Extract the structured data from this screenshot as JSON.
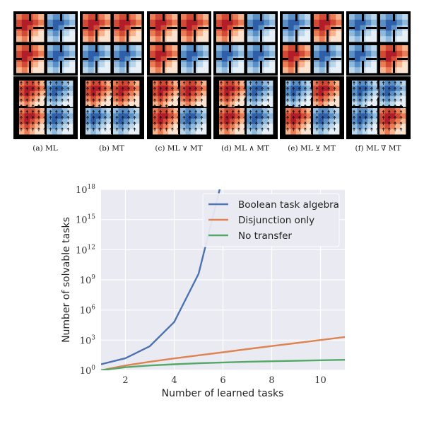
{
  "panels": [
    {
      "caption": "(a) M_L",
      "caption_text": "(a) ML",
      "top": [
        "warm",
        "cool",
        "warm",
        "cool"
      ],
      "bottom": "warm-left"
    },
    {
      "caption": "(b) M_T",
      "caption_text": "(b) MT",
      "top": [
        "warm",
        "warm",
        "cool",
        "cool"
      ],
      "bottom": "warm-top"
    },
    {
      "caption": "(c) M_L ∨ M_T",
      "caption_text": "(c) ML ∨ MT",
      "top": [
        "warm",
        "warm",
        "warm",
        "cool"
      ],
      "bottom": "warm-most"
    },
    {
      "caption": "(d) M_L ∧ M_T",
      "caption_text": "(d) ML ∧ MT",
      "top": [
        "warm",
        "cool",
        "cool",
        "cool"
      ],
      "bottom": "warm-topleft"
    },
    {
      "caption": "(e) M_L ⊻ M_T",
      "caption_text": "(e) ML ⊻ MT",
      "top": [
        "cool",
        "warm",
        "warm",
        "cool"
      ],
      "bottom": "warm-diag"
    },
    {
      "caption": "(f) M_L ∇̄ M_T",
      "caption_text": "(f) ML ∇̄ MT",
      "top": [
        "cool",
        "cool",
        "cool",
        "warm"
      ],
      "bottom": "warm-bottomright"
    }
  ],
  "chart_data": {
    "type": "line",
    "xlabel": "Number of learned tasks",
    "ylabel": "Number of solvable tasks",
    "xlim": [
      1,
      11
    ],
    "ylim_log10": [
      0,
      18
    ],
    "yscale": "log",
    "x_ticks": [
      "2",
      "4",
      "6",
      "8",
      "10"
    ],
    "y_ticks": [
      "10^0",
      "10^3",
      "10^6",
      "10^9",
      "10^12",
      "10^15",
      "10^18"
    ],
    "grid": true,
    "legend_position": "top-right",
    "series": [
      {
        "name": "Boolean task algebra",
        "color": "#4c72b0",
        "x": [
          1,
          2,
          3,
          4,
          5,
          6
        ],
        "y_log10": [
          0.6,
          1.2,
          2.4,
          4.8,
          9.6,
          19.3
        ]
      },
      {
        "name": "Disjunction only",
        "color": "#dd8452",
        "x": [
          1,
          2,
          3,
          4,
          5,
          6,
          7,
          8,
          9,
          10,
          11
        ],
        "y_log10": [
          0.0,
          0.48,
          0.85,
          1.18,
          1.49,
          1.79,
          2.11,
          2.41,
          2.71,
          3.01,
          3.31
        ]
      },
      {
        "name": "No transfer",
        "color": "#55a868",
        "x": [
          1,
          2,
          3,
          4,
          5,
          6,
          7,
          8,
          9,
          10,
          11
        ],
        "y_log10": [
          0.0,
          0.3,
          0.48,
          0.6,
          0.7,
          0.78,
          0.85,
          0.9,
          0.95,
          1.0,
          1.04
        ]
      }
    ]
  }
}
